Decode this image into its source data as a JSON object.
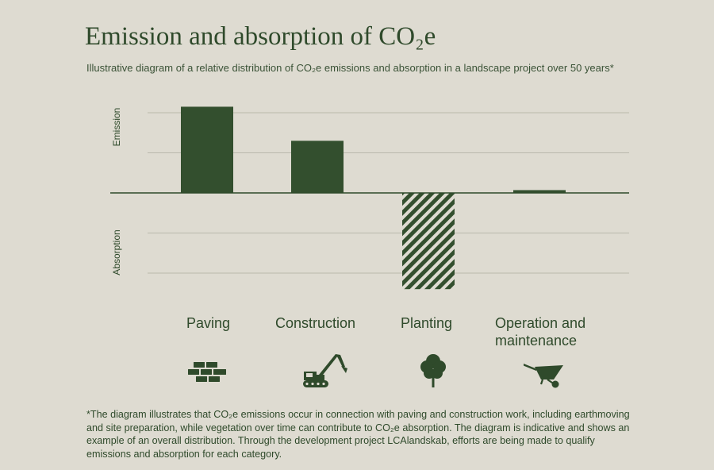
{
  "header": {
    "title": "Emission and absorption of CO₂e",
    "subtitle": "Illustrative diagram of a relative distribution of CO₂e emissions and absorption in a landscape project over 50 years*"
  },
  "chart_data": {
    "type": "bar",
    "categories": [
      "Paving",
      "Construction",
      "Planting",
      "Operation and maintenance"
    ],
    "values": [
      2.15,
      1.3,
      -2.4,
      0.07
    ],
    "ylabel_top": "Emission",
    "ylabel_bottom": "Absorption",
    "ylim": [
      -2.5,
      2.5
    ],
    "grid": true,
    "colors": {
      "bar": "#334f2e",
      "grid": "#b9b8ac",
      "axis": "#2f4a2b"
    }
  },
  "icons": [
    "bricks-icon",
    "excavator-icon",
    "tree-icon",
    "wheelbarrow-icon"
  ],
  "footnote": "*The diagram illustrates that CO₂e emissions occur in connection with paving and construction work, including earthmoving and site preparation, while vegetation over time can contribute to CO₂e absorption. The diagram is indicative and shows an example of an overall distribution. Through the development project LCAlandskab, efforts are being made to qualify emissions and absorption for each category."
}
